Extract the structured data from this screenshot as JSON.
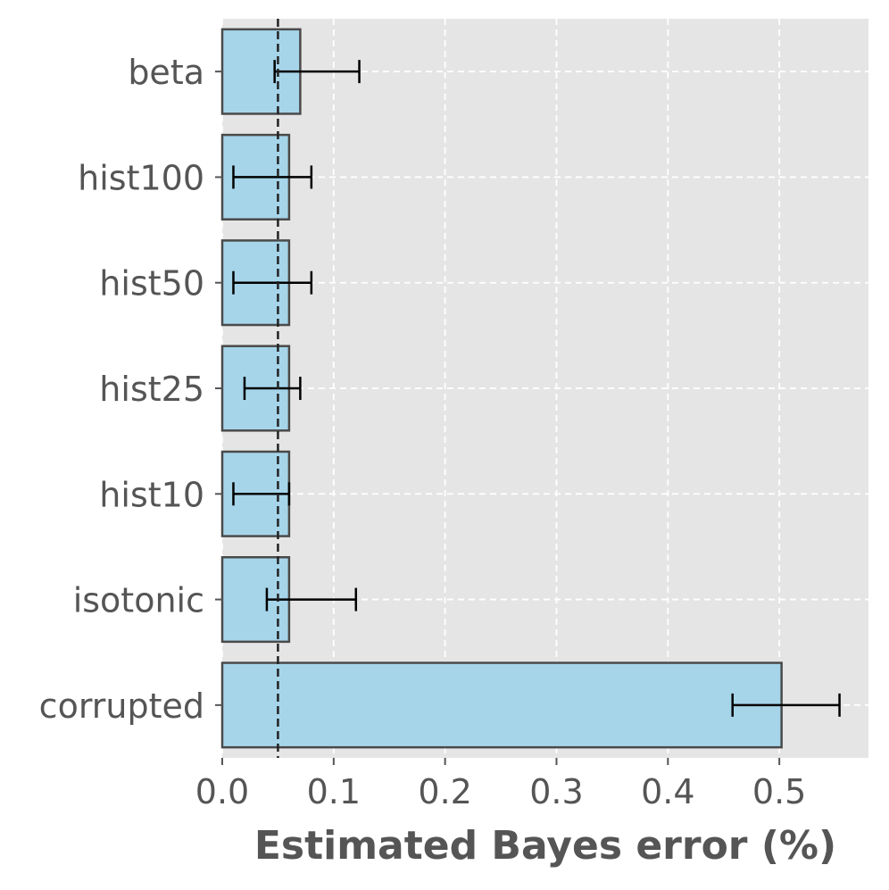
{
  "chart_data": {
    "type": "bar",
    "orientation": "horizontal",
    "categories": [
      "beta",
      "hist100",
      "hist50",
      "hist25",
      "hist10",
      "isotonic",
      "corrupted"
    ],
    "values": [
      0.07,
      0.06,
      0.06,
      0.06,
      0.06,
      0.06,
      0.502
    ],
    "error_low": [
      0.047,
      0.01,
      0.01,
      0.02,
      0.01,
      0.04,
      0.458
    ],
    "error_high": [
      0.123,
      0.08,
      0.08,
      0.07,
      0.06,
      0.12,
      0.554
    ],
    "reference_line": 0.05,
    "xlabel": "Estimated Bayes error (%)",
    "ylabel": "",
    "title": "",
    "xlim": [
      0,
      0.58
    ],
    "xticks": [
      0.0,
      0.1,
      0.2,
      0.3,
      0.4,
      0.5
    ],
    "xtick_labels": [
      "0.0",
      "0.1",
      "0.2",
      "0.3",
      "0.4",
      "0.5"
    ],
    "grid": true,
    "bar_color": "#a6d5ea",
    "bar_edge_color": "#4a4a4a",
    "plot_background": "#e5e5e5"
  }
}
